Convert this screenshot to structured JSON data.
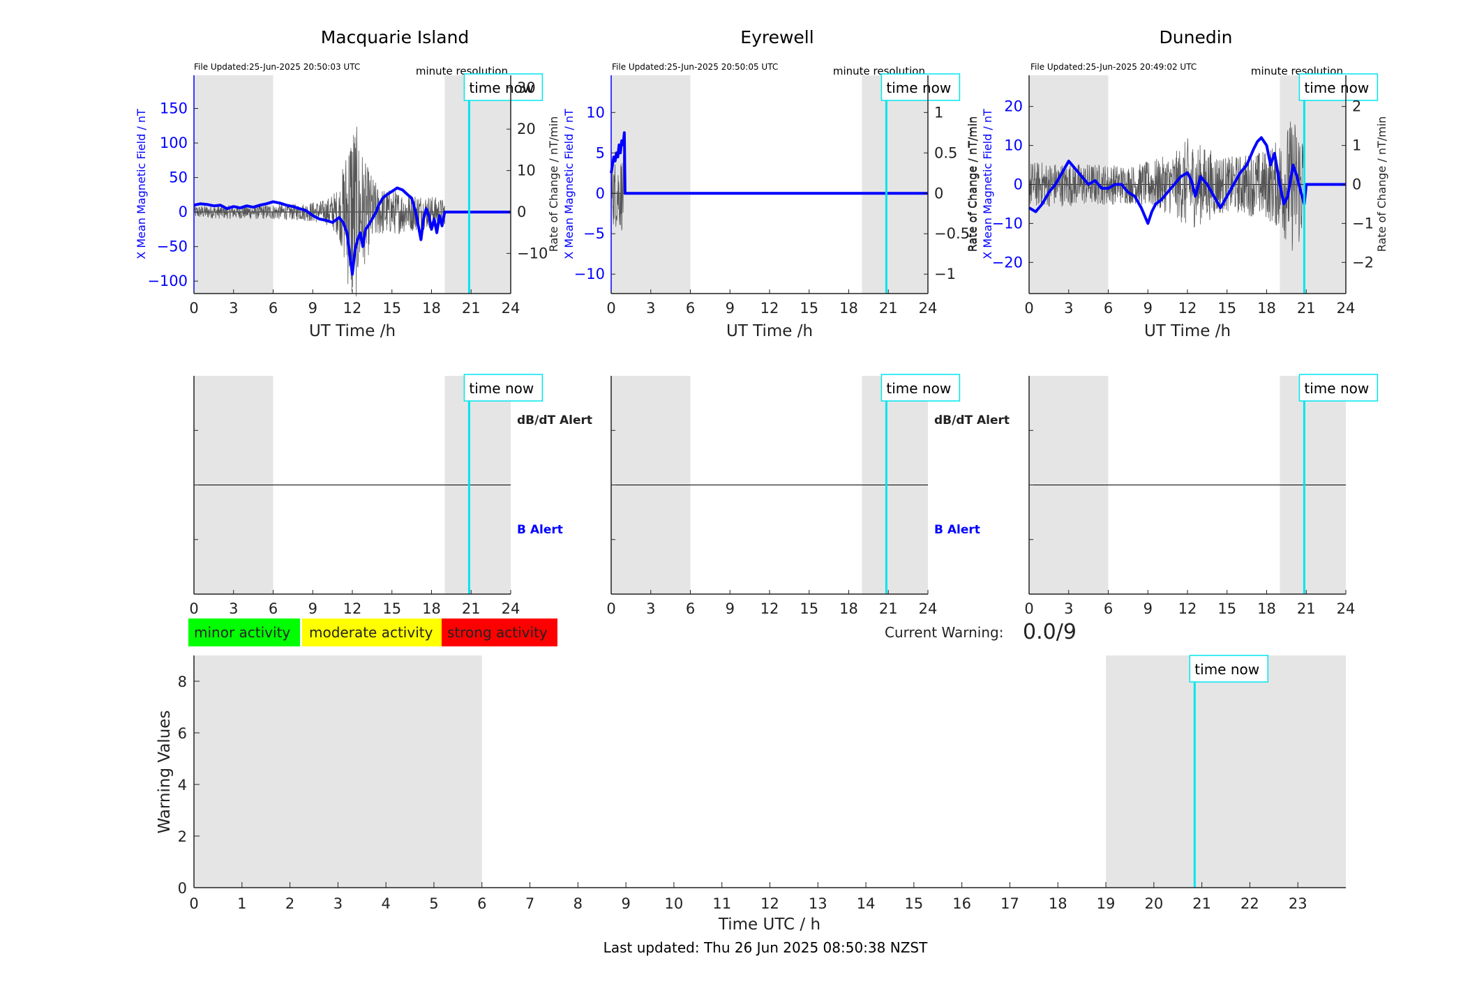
{
  "colors": {
    "background": "#ffffff",
    "shade": "#e5e5e5",
    "time_now": "#00e5ee",
    "field_line": "#0000ff",
    "roc_line": "#555555",
    "axis": "#222222",
    "minor": "#00ff00",
    "moderate": "#ffff00",
    "strong": "#ff0000",
    "axis_blue": "#0000ff"
  },
  "icons": {
    "time_now": "cyan-vertical-line"
  },
  "time_now_label": "time now",
  "legend": {
    "minor": "minor activity",
    "moderate": "moderate activity",
    "strong": "strong activity"
  },
  "current_warning": {
    "label": "Current Warning:",
    "value": "0.0/9"
  },
  "footer": {
    "last_updated": "Last updated: Thu 26 Jun 2025 08:50:38 NZST"
  },
  "chart_data": [
    {
      "id": "macquarie-field",
      "type": "line",
      "title": "Macquarie Island",
      "file_updated": "File Updated:25-Jun-2025 20:50:03 UTC",
      "resolution_label": "minute resolution",
      "xlabel": "UT Time /h",
      "ylabel": "X Mean Magnetic Field / nT",
      "y2label": "Rate of Change / nT/min",
      "xlim": [
        0,
        24
      ],
      "ylim": [
        -118,
        198
      ],
      "y2lim": [
        -19.7,
        33
      ],
      "xticks": [
        0,
        3,
        6,
        9,
        12,
        15,
        18,
        21,
        24
      ],
      "yticks": [
        -100,
        -50,
        0,
        50,
        100,
        150
      ],
      "y2ticks": [
        -10,
        0,
        10,
        20,
        30
      ],
      "shaded_ranges": [
        [
          0,
          6
        ],
        [
          19,
          24
        ]
      ],
      "time_now": 20.85,
      "series": [
        {
          "x": [
            0,
            0.5,
            1,
            1.5,
            2,
            2.5,
            3,
            3.5,
            4,
            4.5,
            5,
            5.5,
            6,
            6.5,
            7,
            7.5,
            8,
            8.5,
            9,
            9.5,
            10,
            10.5,
            11,
            11.3,
            11.6,
            11.8,
            12,
            12.2,
            12.4,
            12.6,
            12.8,
            13,
            13.2,
            13.5,
            13.8,
            14,
            14.3,
            14.6,
            15,
            15.4,
            15.8,
            16.2,
            16.5,
            16.8,
            17,
            17.2,
            17.4,
            17.6,
            17.8,
            18,
            18.2,
            18.4,
            18.6,
            18.8,
            19,
            20,
            21,
            22,
            23,
            24
          ],
          "values": [
            10,
            12,
            11,
            9,
            10,
            5,
            8,
            6,
            9,
            7,
            10,
            12,
            15,
            13,
            10,
            8,
            5,
            2,
            -5,
            -10,
            -12,
            -15,
            -8,
            -15,
            -30,
            -60,
            -90,
            -55,
            -40,
            -30,
            -50,
            -25,
            -20,
            -10,
            0,
            10,
            20,
            25,
            30,
            35,
            32,
            25,
            20,
            0,
            -20,
            -40,
            -10,
            5,
            -5,
            -25,
            -10,
            -30,
            -5,
            -20,
            0,
            0,
            0,
            0,
            0,
            0
          ]
        }
      ],
      "roc_series": {
        "x_start": 0,
        "x_end": 19,
        "amplitude_profile": [
          [
            0,
            1.5
          ],
          [
            8,
            2
          ],
          [
            10,
            3
          ],
          [
            11,
            6
          ],
          [
            11.5,
            15
          ],
          [
            12,
            25
          ],
          [
            13,
            12
          ],
          [
            14,
            6
          ],
          [
            16,
            5
          ],
          [
            18,
            4
          ],
          [
            19,
            3
          ]
        ]
      }
    },
    {
      "id": "eyrewell-field",
      "type": "line",
      "title": "Eyrewell",
      "file_updated": "File Updated:25-Jun-2025 20:50:05 UTC",
      "resolution_label": "minute resolution",
      "xlabel": "UT Time /h",
      "ylabel": "X Mean Magnetic Field / nT",
      "y2label": "Rate of Change / nT/min",
      "xlim": [
        0,
        24
      ],
      "ylim": [
        -12.4,
        14.6
      ],
      "y2lim": [
        -1.24,
        1.46
      ],
      "xticks": [
        0,
        3,
        6,
        9,
        12,
        15,
        18,
        21,
        24
      ],
      "yticks": [
        -10,
        -5,
        0,
        5,
        10
      ],
      "y2ticks": [
        -1,
        -0.5,
        0,
        0.5,
        1
      ],
      "shaded_ranges": [
        [
          0,
          6
        ],
        [
          19,
          24
        ]
      ],
      "time_now": 20.85,
      "series": [
        {
          "x": [
            0,
            0.1,
            0.2,
            0.3,
            0.4,
            0.5,
            0.6,
            0.7,
            0.8,
            0.9,
            1.0,
            1.05,
            1.1,
            1.2,
            24
          ],
          "values": [
            2.5,
            3.5,
            4.5,
            4,
            5,
            4.5,
            6,
            5,
            6.5,
            6,
            7.5,
            0,
            0,
            0,
            0
          ]
        }
      ],
      "roc_series": {
        "x_start": 0,
        "x_end": 1.1,
        "amplitude_profile": [
          [
            0,
            0.4
          ],
          [
            1.1,
            0.5
          ]
        ]
      }
    },
    {
      "id": "dunedin-field",
      "type": "line",
      "title": "Dunedin",
      "file_updated": "File Updated:25-Jun-2025 20:49:02 UTC",
      "resolution_label": "minute resolution",
      "xlabel": "UT Time /h",
      "ylabel": "X Mean Magnetic Field / nT",
      "y2label": "Rate of Change / nT/min",
      "xlim": [
        0,
        24
      ],
      "ylim": [
        -28,
        28
      ],
      "y2lim": [
        -2.8,
        2.8
      ],
      "xticks": [
        0,
        3,
        6,
        9,
        12,
        15,
        18,
        21,
        24
      ],
      "yticks": [
        -20,
        -10,
        0,
        10,
        20
      ],
      "y2ticks": [
        -2,
        -1,
        0,
        1,
        2
      ],
      "shaded_ranges": [
        [
          0,
          6
        ],
        [
          19,
          24
        ]
      ],
      "time_now": 20.85,
      "series": [
        {
          "x": [
            0,
            0.5,
            1,
            1.5,
            2,
            2.5,
            3,
            3.5,
            4,
            4.5,
            5,
            5.5,
            6,
            6.5,
            7,
            7.5,
            8,
            8.5,
            9,
            9.3,
            9.6,
            10,
            10.5,
            11,
            11.5,
            12,
            12.3,
            12.6,
            13,
            13.5,
            14,
            14.5,
            15,
            15.5,
            16,
            16.5,
            17,
            17.3,
            17.6,
            18,
            18.3,
            18.6,
            19,
            19.3,
            19.6,
            20,
            20.3,
            20.6,
            20.85,
            21,
            22,
            23,
            24
          ],
          "values": [
            -6,
            -7,
            -5,
            -2,
            0,
            3,
            6,
            4,
            2,
            0,
            1,
            -1,
            -1,
            0,
            0,
            -2,
            -3,
            -6,
            -10,
            -7,
            -5,
            -4,
            -2,
            0,
            2,
            3,
            1,
            -3,
            2,
            0,
            -3,
            -6,
            -3,
            0,
            3,
            5,
            9,
            11,
            12,
            10,
            5,
            8,
            0,
            -5,
            -3,
            5,
            2,
            -2,
            -5,
            0,
            0,
            0,
            0
          ]
        }
      ],
      "roc_series": {
        "x_start": 0,
        "x_end": 20.85,
        "amplitude_profile": [
          [
            0,
            0.6
          ],
          [
            8,
            0.5
          ],
          [
            11,
            0.8
          ],
          [
            12,
            1.2
          ],
          [
            15,
            0.7
          ],
          [
            18,
            0.9
          ],
          [
            19,
            1.2
          ],
          [
            20,
            1.8
          ],
          [
            20.85,
            1.5
          ]
        ]
      }
    },
    {
      "id": "macquarie-alert",
      "type": "line",
      "xlim": [
        0,
        24
      ],
      "xticks": [
        0,
        3,
        6,
        9,
        12,
        15,
        18,
        21,
        24
      ],
      "shaded_ranges": [
        [
          0,
          6
        ],
        [
          19,
          24
        ]
      ],
      "time_now": 20.85,
      "dbdt_label": "dB/dT Alert",
      "b_label": "B Alert"
    },
    {
      "id": "eyrewell-alert",
      "type": "line",
      "xlim": [
        0,
        24
      ],
      "xticks": [
        0,
        3,
        6,
        9,
        12,
        15,
        18,
        21,
        24
      ],
      "shaded_ranges": [
        [
          0,
          6
        ],
        [
          19,
          24
        ]
      ],
      "time_now": 20.85,
      "dbdt_label": "dB/dT Alert",
      "b_label": "B Alert"
    },
    {
      "id": "dunedin-alert",
      "type": "line",
      "xlim": [
        0,
        24
      ],
      "xticks": [
        0,
        3,
        6,
        9,
        12,
        15,
        18,
        21,
        24
      ],
      "shaded_ranges": [
        [
          0,
          6
        ],
        [
          19,
          24
        ]
      ],
      "time_now": 20.85
    },
    {
      "id": "warning-values",
      "type": "bar",
      "xlabel": "Time UTC / h",
      "ylabel": "Warning Values",
      "xlim": [
        0,
        24
      ],
      "ylim": [
        0,
        9
      ],
      "xticks": [
        0,
        1,
        2,
        3,
        4,
        5,
        6,
        7,
        8,
        9,
        10,
        11,
        12,
        13,
        14,
        15,
        16,
        17,
        18,
        19,
        20,
        21,
        22,
        23
      ],
      "yticks": [
        0,
        2,
        4,
        6,
        8
      ],
      "shaded_ranges": [
        [
          0,
          6
        ],
        [
          19,
          24
        ]
      ],
      "time_now": 20.85,
      "values": []
    }
  ]
}
